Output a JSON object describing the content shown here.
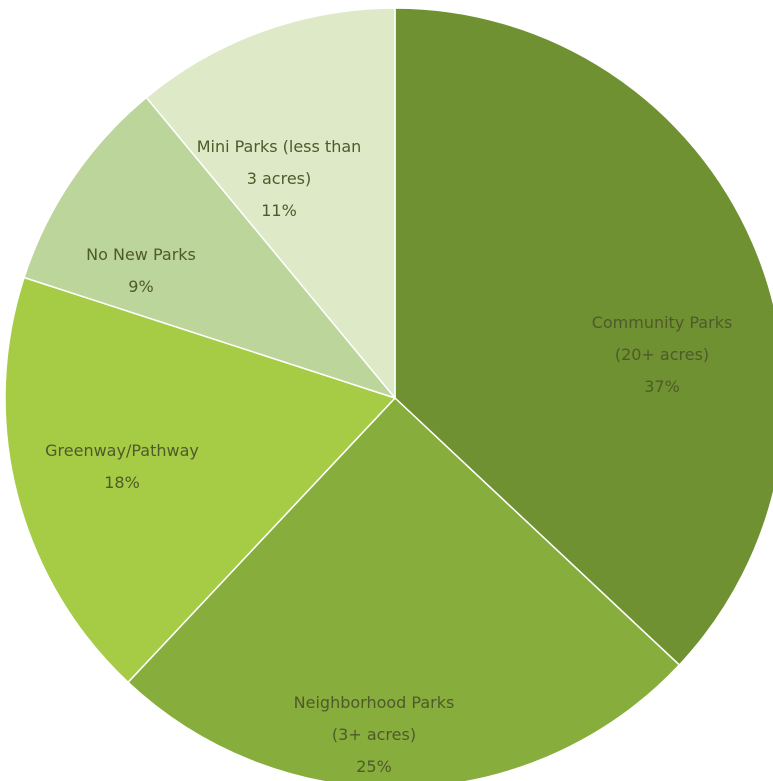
{
  "chart_data": {
    "type": "pie",
    "title": "",
    "legend": "none",
    "slices": [
      {
        "lines": [
          "Community Parks",
          "(20+ acres)",
          "37%"
        ],
        "value": 37,
        "color": "#6f9132"
      },
      {
        "lines": [
          "Neighborhood Parks",
          "(3+ acres)",
          "25%"
        ],
        "value": 25,
        "color": "#87ad3c"
      },
      {
        "lines": [
          "Greenway/Pathway",
          "18%"
        ],
        "value": 18,
        "color": "#a6cb45"
      },
      {
        "lines": [
          "No New Parks",
          "9%"
        ],
        "value": 9,
        "color": "#bcd59a"
      },
      {
        "lines": [
          "Mini Parks (less than",
          "3 acres)",
          "11%"
        ],
        "value": 11,
        "color": "#dee9c8"
      }
    ]
  }
}
